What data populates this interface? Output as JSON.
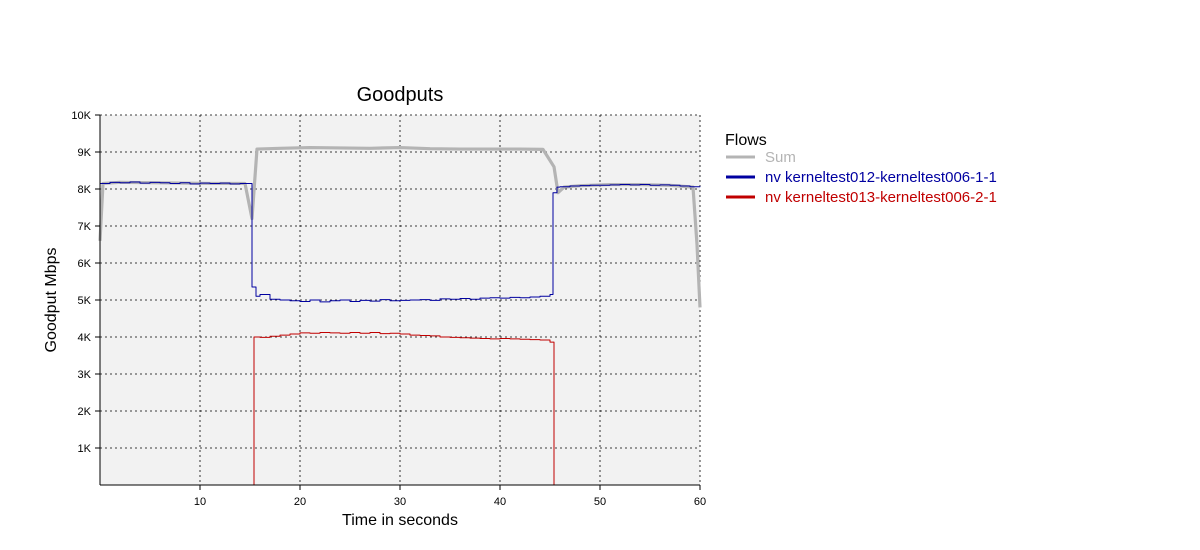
{
  "chart_data": {
    "type": "line",
    "title": "Goodputs",
    "xlabel": "Time in seconds",
    "ylabel": "Goodput Mbps",
    "xlim": [
      0,
      60
    ],
    "ylim": [
      0,
      10000
    ],
    "x_ticks": [
      10,
      20,
      30,
      40,
      50,
      60
    ],
    "x_tick_labels": [
      "10",
      "20",
      "30",
      "40",
      "50",
      "60"
    ],
    "y_ticks": [
      1000,
      2000,
      3000,
      4000,
      5000,
      6000,
      7000,
      8000,
      9000,
      10000
    ],
    "y_tick_labels": [
      "1K",
      "2K",
      "3K",
      "4K",
      "5K",
      "6K",
      "7K",
      "8K",
      "9K",
      "10K"
    ],
    "grid": true,
    "background": "#f2f2f2",
    "legend": {
      "title": "Flows",
      "position": "right"
    },
    "series": [
      {
        "name": "Sum",
        "color": "#b4b4b4",
        "style": "line",
        "points": [
          [
            0.0,
            6600
          ],
          [
            0.3,
            8150
          ],
          [
            2,
            8180
          ],
          [
            5,
            8170
          ],
          [
            8,
            8160
          ],
          [
            11,
            8150
          ],
          [
            14.5,
            8150
          ],
          [
            15.2,
            7200
          ],
          [
            15.7,
            9080
          ],
          [
            18,
            9100
          ],
          [
            21,
            9120
          ],
          [
            24,
            9110
          ],
          [
            27,
            9100
          ],
          [
            30,
            9120
          ],
          [
            33,
            9090
          ],
          [
            36,
            9080
          ],
          [
            39,
            9080
          ],
          [
            42,
            9080
          ],
          [
            44.3,
            9070
          ],
          [
            45.4,
            8600
          ],
          [
            45.8,
            7900
          ],
          [
            46.4,
            8050
          ],
          [
            48,
            8090
          ],
          [
            51,
            8120
          ],
          [
            54,
            8120
          ],
          [
            57,
            8100
          ],
          [
            59.3,
            8050
          ],
          [
            59.7,
            6500
          ],
          [
            60.0,
            4800
          ]
        ]
      },
      {
        "name": "nv kerneltest012-kerneltest006-1-1",
        "color": "#0000a0",
        "style": "step",
        "points": [
          [
            0,
            8150
          ],
          [
            1,
            8180
          ],
          [
            2,
            8170
          ],
          [
            3,
            8190
          ],
          [
            4,
            8160
          ],
          [
            5,
            8180
          ],
          [
            6,
            8170
          ],
          [
            7,
            8150
          ],
          [
            8,
            8170
          ],
          [
            9,
            8140
          ],
          [
            10,
            8160
          ],
          [
            11,
            8150
          ],
          [
            12,
            8160
          ],
          [
            13,
            8140
          ],
          [
            14,
            8150
          ],
          [
            15.2,
            5350
          ],
          [
            15.6,
            5100
          ],
          [
            16,
            5150
          ],
          [
            17,
            5020
          ],
          [
            18,
            5000
          ],
          [
            19,
            4980
          ],
          [
            20,
            4960
          ],
          [
            21,
            5000
          ],
          [
            22,
            4950
          ],
          [
            23,
            4980
          ],
          [
            24,
            5000
          ],
          [
            25,
            4960
          ],
          [
            26,
            4990
          ],
          [
            27,
            4970
          ],
          [
            28,
            5010
          ],
          [
            29,
            4980
          ],
          [
            30,
            4990
          ],
          [
            31,
            5000
          ],
          [
            32,
            5010
          ],
          [
            33,
            4990
          ],
          [
            34,
            5030
          ],
          [
            35,
            5020
          ],
          [
            36,
            5040
          ],
          [
            37,
            5020
          ],
          [
            38,
            5050
          ],
          [
            39,
            5060
          ],
          [
            40,
            5050
          ],
          [
            41,
            5070
          ],
          [
            42,
            5060
          ],
          [
            43,
            5080
          ],
          [
            44,
            5100
          ],
          [
            45,
            5150
          ],
          [
            45.3,
            7900
          ],
          [
            45.7,
            8050
          ],
          [
            46,
            8060
          ],
          [
            47,
            8080
          ],
          [
            48,
            8090
          ],
          [
            49,
            8100
          ],
          [
            50,
            8100
          ],
          [
            51,
            8110
          ],
          [
            52,
            8120
          ],
          [
            53,
            8110
          ],
          [
            54,
            8120
          ],
          [
            55,
            8100
          ],
          [
            56,
            8110
          ],
          [
            57,
            8100
          ],
          [
            58,
            8080
          ],
          [
            59,
            8060
          ],
          [
            60,
            8050
          ]
        ]
      },
      {
        "name": "nv kerneltest013-kerneltest006-2-1",
        "color": "#c00000",
        "style": "step",
        "points": [
          [
            0,
            0
          ],
          [
            15.4,
            0
          ],
          [
            15.4,
            4000
          ],
          [
            16,
            3990
          ],
          [
            17,
            4020
          ],
          [
            18,
            4050
          ],
          [
            19,
            4080
          ],
          [
            20,
            4110
          ],
          [
            21,
            4100
          ],
          [
            22,
            4120
          ],
          [
            23,
            4110
          ],
          [
            24,
            4100
          ],
          [
            25,
            4120
          ],
          [
            26,
            4100
          ],
          [
            27,
            4120
          ],
          [
            28,
            4090
          ],
          [
            29,
            4100
          ],
          [
            30,
            4080
          ],
          [
            31,
            4050
          ],
          [
            32,
            4040
          ],
          [
            33,
            4030
          ],
          [
            34,
            4000
          ],
          [
            35,
            3990
          ],
          [
            36,
            3980
          ],
          [
            37,
            3970
          ],
          [
            38,
            3960
          ],
          [
            39,
            3950
          ],
          [
            40,
            3960
          ],
          [
            41,
            3950
          ],
          [
            42,
            3940
          ],
          [
            43,
            3930
          ],
          [
            44,
            3920
          ],
          [
            45,
            3860
          ],
          [
            45.4,
            3860
          ],
          [
            45.4,
            0
          ],
          [
            60,
            0
          ]
        ]
      }
    ]
  }
}
